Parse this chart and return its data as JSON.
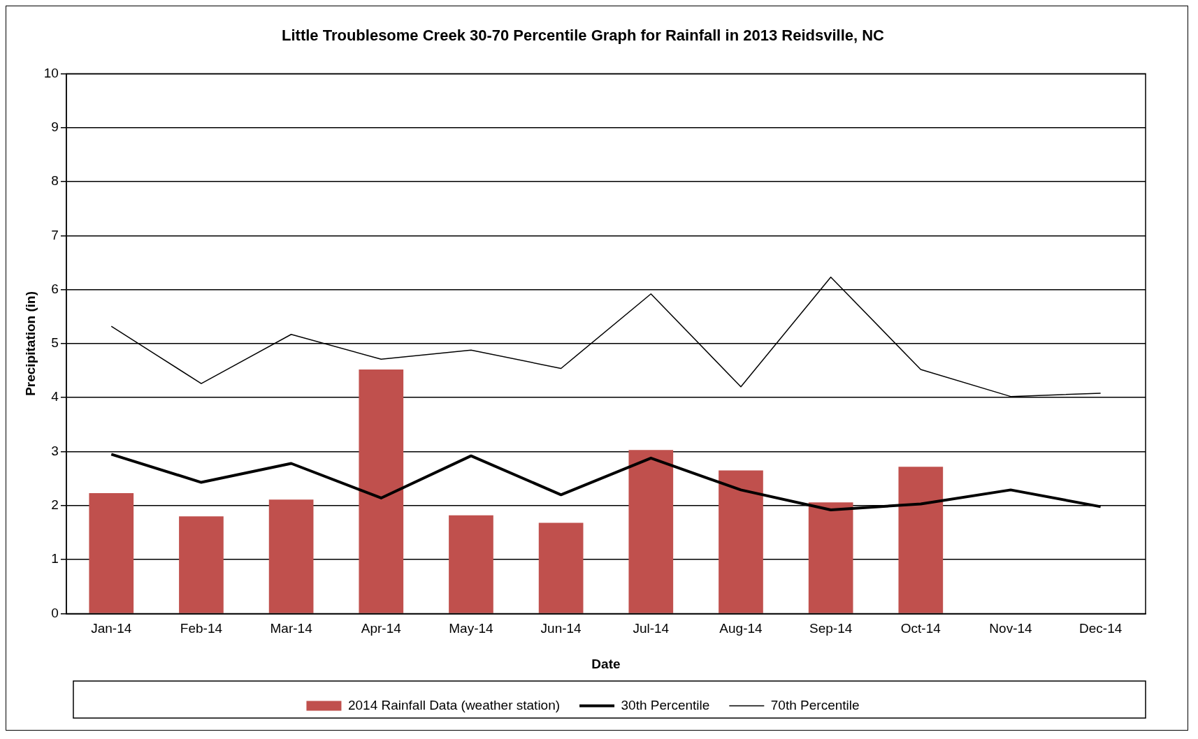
{
  "chart_data": {
    "type": "bar",
    "title": "Little Troublesome Creek 30-70 Percentile Graph for Rainfall in 2013 Reidsville, NC",
    "xlabel": "Date",
    "ylabel": "Precipitation (in)",
    "categories": [
      "Jan-14",
      "Feb-14",
      "Mar-14",
      "Apr-14",
      "May-14",
      "Jun-14",
      "Jul-14",
      "Aug-14",
      "Sep-14",
      "Oct-14",
      "Nov-14",
      "Dec-14"
    ],
    "series": [
      {
        "name": "2014 Rainfall Data (weather station)",
        "color": "#c0504d",
        "values": [
          2.23,
          1.8,
          2.11,
          4.52,
          1.82,
          1.68,
          3.03,
          2.65,
          2.06,
          2.72,
          null,
          null
        ]
      },
      {
        "name": "30th Percentile",
        "type": "line",
        "color": "#000000",
        "values": [
          2.95,
          2.43,
          2.78,
          2.14,
          2.92,
          2.2,
          2.88,
          2.29,
          1.92,
          2.03,
          2.29,
          1.98
        ]
      },
      {
        "name": "70th Percentile",
        "type": "line",
        "color": "#000000",
        "values": [
          5.32,
          4.26,
          5.17,
          4.71,
          4.88,
          4.54,
          5.92,
          4.2,
          6.23,
          4.52,
          4.02,
          4.08
        ]
      }
    ],
    "ylim": [
      0,
      10
    ],
    "yticks": [
      0,
      1,
      2,
      3,
      4,
      5,
      6,
      7,
      8,
      9,
      10
    ],
    "grid": "y",
    "legend": "bottom",
    "marker": "none",
    "line_style": "solid"
  }
}
